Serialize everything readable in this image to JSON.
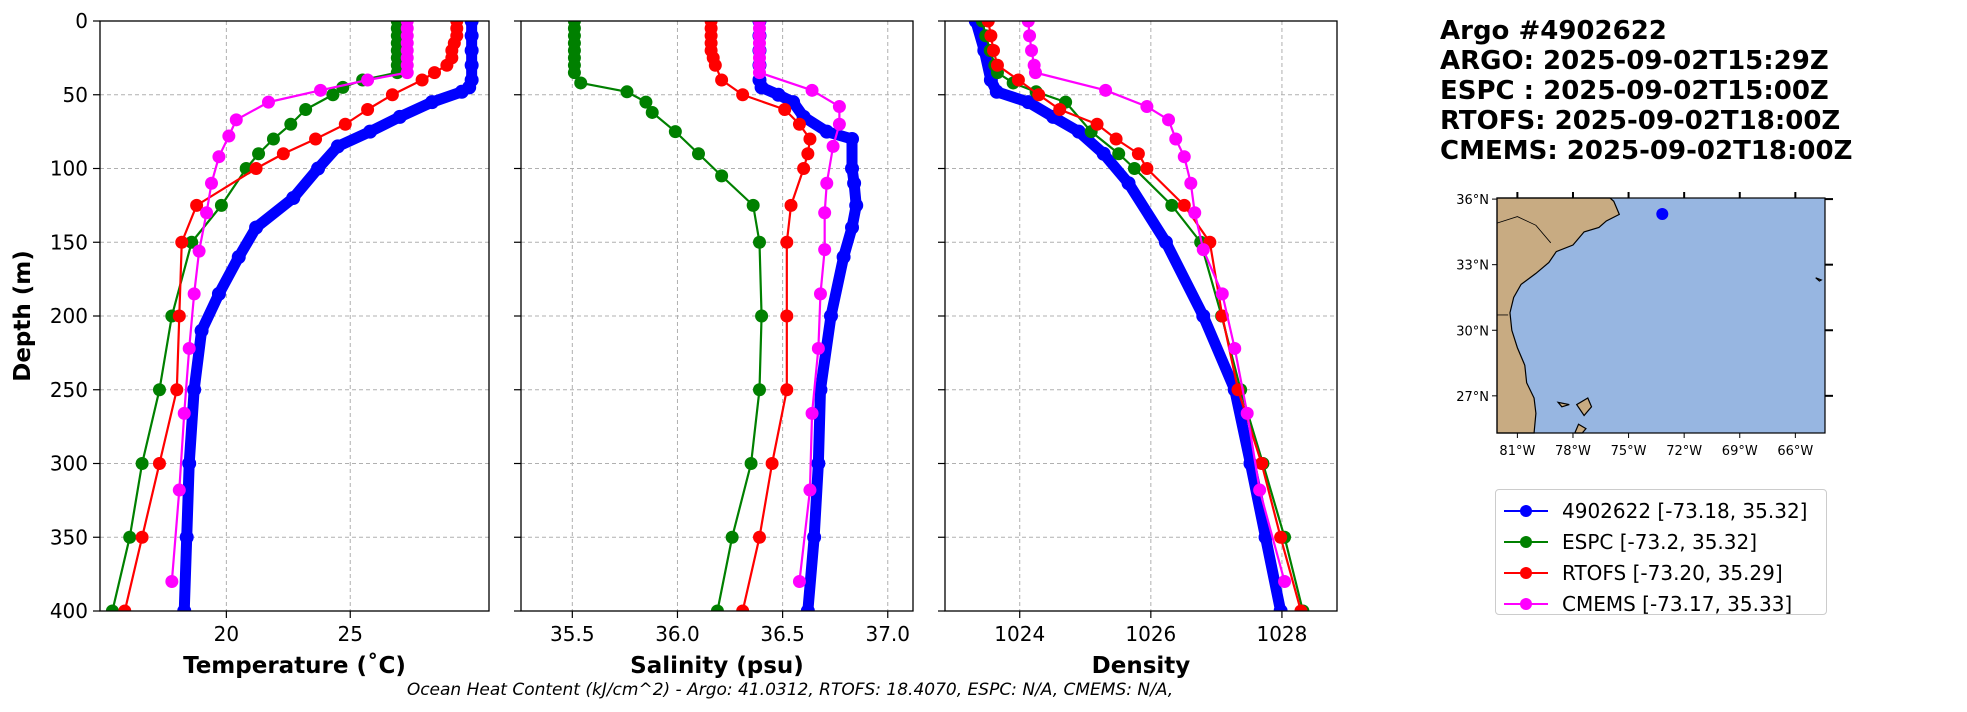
{
  "title_lines": [
    "Argo #4902622",
    "ARGO: 2025-09-02T15:29Z",
    "ESPC : 2025-09-02T15:00Z",
    "RTOFS: 2025-09-02T18:00Z",
    "CMEMS: 2025-09-02T18:00Z"
  ],
  "caption": "Ocean Heat Content (kJ/cm^2) - Argo: 41.0312,  RTOFS: 18.4070,  ESPC: N/A,  CMEMS: N/A,",
  "colors": {
    "argo": "#0000ff",
    "espc": "#008000",
    "rtofs": "#ff0000",
    "cmems": "#ff00ff",
    "land": "#c8ab82",
    "ocean": "#97b6e1"
  },
  "legend": [
    {
      "label": "4902622 [-73.18, 35.32]",
      "series": "argo"
    },
    {
      "label": "ESPC [-73.2, 35.32]",
      "series": "espc"
    },
    {
      "label": "RTOFS [-73.20, 35.29]",
      "series": "rtofs"
    },
    {
      "label": "CMEMS [-73.17, 35.33]",
      "series": "cmems"
    }
  ],
  "map": {
    "lon_ticks": [
      "81°W",
      "78°W",
      "75°W",
      "72°W",
      "69°W",
      "66°W"
    ],
    "lon_values": [
      -81,
      -78,
      -75,
      -72,
      -69,
      -66
    ],
    "lat_ticks": [
      "27°N",
      "30°N",
      "33°N",
      "36°N"
    ],
    "lat_values": [
      27,
      30,
      33,
      36
    ],
    "extent": [
      -82.1,
      -64.4,
      25.3,
      36.05
    ],
    "float_position": [
      -73.18,
      35.32
    ]
  },
  "chart_data": [
    {
      "type": "line",
      "title": "",
      "xlabel": "Temperature (˚C)",
      "ylabel": "Depth (m)",
      "xlim": [
        14.9,
        30.6
      ],
      "ylim": [
        400,
        0
      ],
      "xticks": [
        20,
        25
      ],
      "xtick_labels": [
        "20",
        "25"
      ],
      "yticks": [
        0,
        50,
        100,
        150,
        200,
        250,
        300,
        350,
        400
      ],
      "ytick_labels": [
        "0",
        "50",
        "100",
        "150",
        "200",
        "250",
        "300",
        "350",
        "400"
      ],
      "grid": true,
      "series": [
        {
          "name": "argo",
          "depth": [
            0,
            10,
            20,
            30,
            40,
            45,
            48,
            55,
            65,
            75,
            85,
            100,
            120,
            140,
            160,
            185,
            210,
            250,
            300,
            350,
            400
          ],
          "values": [
            29.9,
            29.9,
            29.9,
            29.9,
            29.9,
            29.8,
            29.5,
            28.3,
            27.0,
            25.8,
            24.5,
            23.7,
            22.7,
            21.2,
            20.5,
            19.7,
            19.0,
            18.7,
            18.5,
            18.4,
            18.3
          ]
        },
        {
          "name": "espc",
          "depth": [
            0,
            5,
            10,
            15,
            20,
            25,
            30,
            35,
            40,
            45,
            50,
            60,
            70,
            80,
            90,
            100,
            125,
            150,
            200,
            250,
            300,
            350,
            400
          ],
          "values": [
            26.9,
            26.9,
            26.9,
            26.9,
            26.9,
            26.9,
            26.9,
            26.9,
            25.5,
            24.7,
            24.3,
            23.2,
            22.6,
            21.9,
            21.3,
            20.8,
            19.8,
            18.6,
            17.8,
            17.3,
            16.6,
            16.1,
            15.4
          ]
        },
        {
          "name": "rtofs",
          "depth": [
            0,
            5,
            10,
            15,
            20,
            25,
            30,
            35,
            40,
            50,
            60,
            70,
            80,
            90,
            100,
            125,
            150,
            200,
            250,
            300,
            350,
            400
          ],
          "values": [
            29.3,
            29.3,
            29.3,
            29.2,
            29.1,
            29.1,
            28.9,
            28.4,
            27.9,
            26.7,
            25.7,
            24.8,
            23.6,
            22.3,
            21.2,
            18.8,
            18.2,
            18.1,
            18.0,
            17.3,
            16.6,
            15.9
          ]
        },
        {
          "name": "cmems",
          "depth": [
            0,
            5,
            10,
            15,
            20,
            25,
            30,
            35,
            40,
            47,
            55,
            67,
            78,
            92,
            110,
            130,
            156,
            185,
            222,
            266,
            318,
            380
          ],
          "values": [
            27.3,
            27.3,
            27.3,
            27.3,
            27.3,
            27.3,
            27.3,
            27.3,
            25.7,
            23.8,
            21.7,
            20.4,
            20.1,
            19.7,
            19.4,
            19.2,
            18.9,
            18.7,
            18.5,
            18.3,
            18.1,
            17.8
          ]
        }
      ]
    },
    {
      "type": "line",
      "title": "",
      "xlabel": "Salinity (psu)",
      "ylabel": "",
      "xlim": [
        35.256,
        37.12
      ],
      "ylim": [
        400,
        0
      ],
      "xticks": [
        35.5,
        36.0,
        36.5,
        37.0
      ],
      "xtick_labels": [
        "35.5",
        "36.0",
        "36.5",
        "37.0"
      ],
      "yticks": [
        0,
        50,
        100,
        150,
        200,
        250,
        300,
        350,
        400
      ],
      "ytick_labels": [],
      "grid": true,
      "series": [
        {
          "name": "argo",
          "depth": [
            0,
            10,
            20,
            30,
            40,
            45,
            50,
            55,
            65,
            75,
            80,
            100,
            110,
            125,
            140,
            160,
            200,
            250,
            300,
            350,
            400
          ],
          "values": [
            36.39,
            36.39,
            36.39,
            36.39,
            36.39,
            36.4,
            36.48,
            36.55,
            36.6,
            36.71,
            36.83,
            36.83,
            36.84,
            36.85,
            36.83,
            36.79,
            36.73,
            36.68,
            36.67,
            36.65,
            36.62
          ]
        },
        {
          "name": "espc",
          "depth": [
            0,
            5,
            10,
            15,
            20,
            25,
            30,
            35,
            42,
            48,
            55,
            62,
            75,
            90,
            105,
            125,
            150,
            200,
            250,
            300,
            350,
            400
          ],
          "values": [
            35.51,
            35.51,
            35.51,
            35.51,
            35.51,
            35.51,
            35.51,
            35.51,
            35.54,
            35.76,
            35.85,
            35.88,
            35.99,
            36.1,
            36.21,
            36.36,
            36.39,
            36.4,
            36.39,
            36.35,
            36.26,
            36.19
          ]
        },
        {
          "name": "rtofs",
          "depth": [
            0,
            5,
            10,
            15,
            20,
            25,
            30,
            40,
            50,
            60,
            70,
            80,
            90,
            100,
            125,
            150,
            200,
            250,
            300,
            350,
            400
          ],
          "values": [
            36.16,
            36.16,
            36.16,
            36.16,
            36.16,
            36.17,
            36.18,
            36.21,
            36.31,
            36.51,
            36.58,
            36.63,
            36.62,
            36.6,
            36.54,
            36.52,
            36.52,
            36.52,
            36.45,
            36.39,
            36.31
          ]
        },
        {
          "name": "cmems",
          "depth": [
            0,
            5,
            10,
            15,
            20,
            25,
            30,
            35,
            47,
            58,
            70,
            85,
            110,
            130,
            155,
            185,
            222,
            266,
            318,
            380
          ],
          "values": [
            36.39,
            36.39,
            36.39,
            36.39,
            36.39,
            36.39,
            36.39,
            36.39,
            36.64,
            36.77,
            36.77,
            36.74,
            36.71,
            36.7,
            36.7,
            36.68,
            36.67,
            36.64,
            36.63,
            36.58
          ]
        }
      ]
    },
    {
      "type": "line",
      "title": "",
      "xlabel": "Density",
      "ylabel": "",
      "xlim": [
        1022.86,
        1028.84
      ],
      "ylim": [
        400,
        0
      ],
      "xticks": [
        1024,
        1026,
        1028
      ],
      "xtick_labels": [
        "1024",
        "1026",
        "1028"
      ],
      "yticks": [
        0,
        50,
        100,
        150,
        200,
        250,
        300,
        350,
        400
      ],
      "ytick_labels": [],
      "grid": true,
      "series": [
        {
          "name": "argo",
          "depth": [
            0,
            20,
            40,
            48,
            55,
            65,
            75,
            90,
            110,
            150,
            200,
            250,
            300,
            350,
            400
          ],
          "values": [
            1023.33,
            1023.46,
            1023.56,
            1023.65,
            1024.13,
            1024.51,
            1024.9,
            1025.28,
            1025.66,
            1026.23,
            1026.8,
            1027.28,
            1027.52,
            1027.75,
            1027.98
          ]
        },
        {
          "name": "espc",
          "depth": [
            0,
            10,
            20,
            30,
            35,
            42,
            48,
            55,
            75,
            90,
            100,
            125,
            150,
            200,
            250,
            300,
            350,
            400
          ],
          "values": [
            1023.43,
            1023.48,
            1023.55,
            1023.62,
            1023.66,
            1023.9,
            1024.25,
            1024.7,
            1025.09,
            1025.51,
            1025.75,
            1026.32,
            1026.76,
            1027.08,
            1027.37,
            1027.71,
            1028.04,
            1028.32
          ]
        },
        {
          "name": "rtofs",
          "depth": [
            0,
            10,
            20,
            30,
            40,
            50,
            60,
            70,
            80,
            90,
            100,
            125,
            150,
            200,
            250,
            300,
            350,
            400
          ],
          "values": [
            1023.52,
            1023.56,
            1023.6,
            1023.66,
            1023.98,
            1024.29,
            1024.61,
            1025.18,
            1025.47,
            1025.81,
            1025.94,
            1026.51,
            1026.9,
            1027.09,
            1027.33,
            1027.69,
            1027.98,
            1028.29
          ]
        },
        {
          "name": "cmems",
          "depth": [
            0,
            10,
            20,
            30,
            35,
            47,
            58,
            67,
            80,
            92,
            110,
            130,
            155,
            185,
            222,
            266,
            318,
            380
          ],
          "values": [
            1024.13,
            1024.15,
            1024.18,
            1024.22,
            1024.24,
            1025.31,
            1025.94,
            1026.27,
            1026.38,
            1026.51,
            1026.61,
            1026.67,
            1026.8,
            1027.09,
            1027.28,
            1027.47,
            1027.66,
            1028.04
          ]
        }
      ]
    }
  ]
}
